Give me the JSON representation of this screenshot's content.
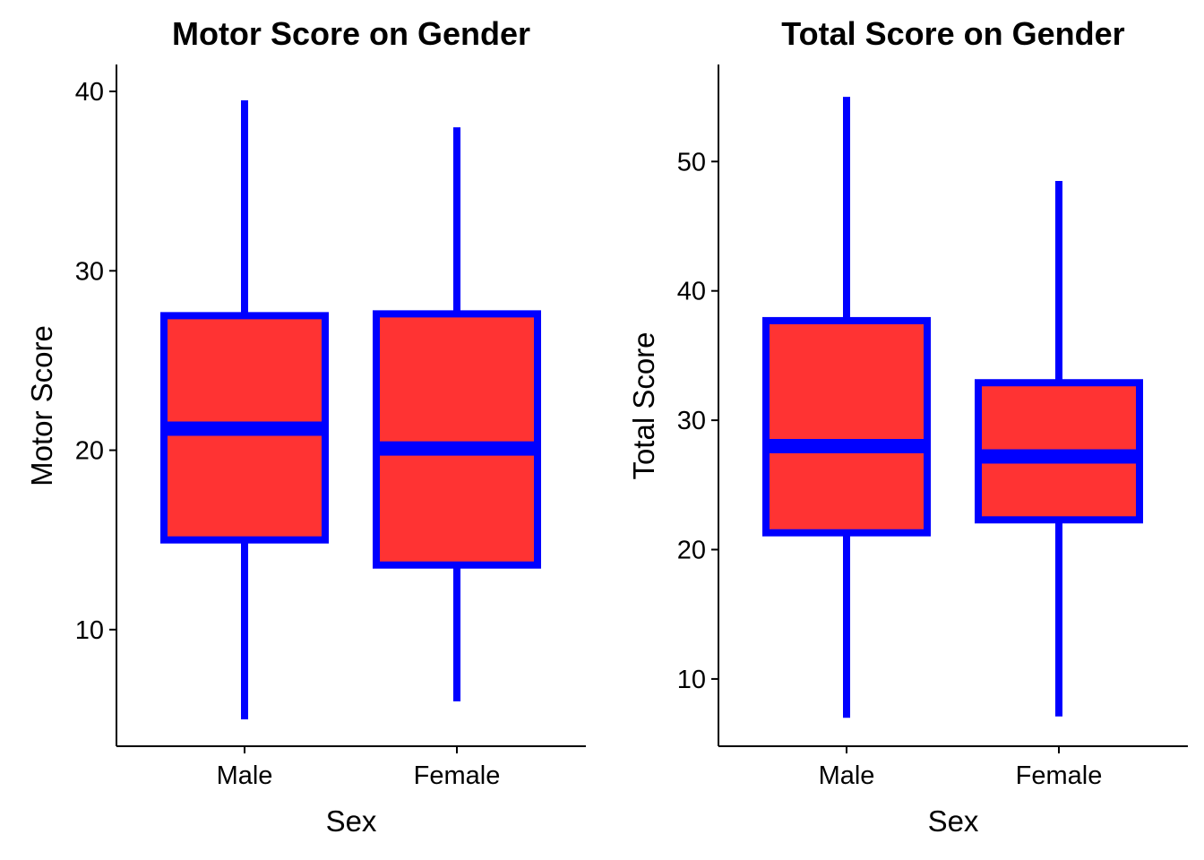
{
  "chart_data": [
    {
      "type": "boxplot",
      "title": "Motor Score on Gender",
      "xlabel": "Sex",
      "ylabel": "Motor Score",
      "categories": [
        "Male",
        "Female"
      ],
      "yticks": [
        10,
        20,
        30,
        40
      ],
      "ylim": [
        3.5,
        41.5
      ],
      "grid": false,
      "boxes": [
        {
          "category": "Male",
          "min": 5,
          "q1": 15,
          "median": 21.2,
          "q3": 27.5,
          "max": 39.5
        },
        {
          "category": "Female",
          "min": 6,
          "q1": 13.6,
          "median": 20.1,
          "q3": 27.6,
          "max": 38
        }
      ]
    },
    {
      "type": "boxplot",
      "title": "Total Score on Gender",
      "xlabel": "Sex",
      "ylabel": "Total Score",
      "categories": [
        "Male",
        "Female"
      ],
      "yticks": [
        10,
        20,
        30,
        40,
        50
      ],
      "ylim": [
        4.8,
        57.5
      ],
      "grid": false,
      "boxes": [
        {
          "category": "Male",
          "min": 7,
          "q1": 21.3,
          "median": 28,
          "q3": 37.7,
          "max": 55
        },
        {
          "category": "Female",
          "min": 7.1,
          "q1": 22.3,
          "median": 27.2,
          "q3": 32.9,
          "max": 48.5
        }
      ]
    }
  ],
  "style": {
    "box_fill": "#ff3333",
    "box_stroke": "#0000ff",
    "axis_color": "#000000"
  }
}
